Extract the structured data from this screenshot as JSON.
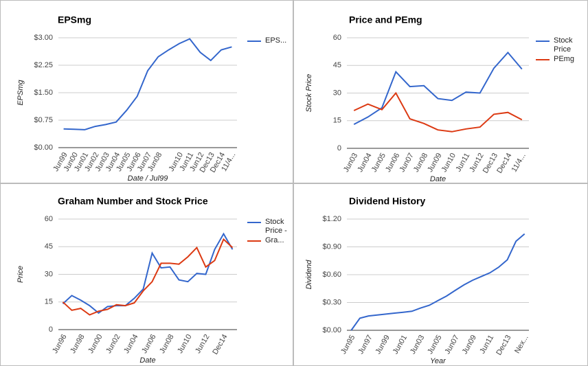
{
  "chart_data": [
    {
      "type": "line",
      "title": "EPSmg",
      "xlabel": "Date / Jul99",
      "ylabel": "EPSmg",
      "categories": [
        "Jun99",
        "Jun00",
        "Jun01",
        "Jun02",
        "Jun03",
        "Jun04",
        "Jun05",
        "Jun06",
        "Jun07",
        "Jun08",
        null,
        "Jun10",
        "Jun11",
        "Jun12",
        "Dec13",
        "Dec14",
        "11/4..."
      ],
      "series": [
        {
          "name": "EPS...",
          "color": "#3366cc",
          "values": [
            0.51,
            0.5,
            0.49,
            0.58,
            0.63,
            0.7,
            1.02,
            1.4,
            2.1,
            2.48,
            2.67,
            2.84,
            2.97,
            2.6,
            2.38,
            2.67,
            2.75
          ]
        }
      ],
      "ylim": [
        0,
        3
      ],
      "yticks": [
        {
          "value": 0,
          "label": "$0.00"
        },
        {
          "value": 0.75,
          "label": "$0.75"
        },
        {
          "value": 1.5,
          "label": "$1.50"
        },
        {
          "value": 2.25,
          "label": "$2.25"
        },
        {
          "value": 3,
          "label": "$3.00"
        }
      ],
      "grid": true,
      "legend": "right"
    },
    {
      "type": "line",
      "title": "Price and PEmg",
      "xlabel": "Date",
      "ylabel": "Stock Price",
      "categories": [
        "Jun03",
        "Jun04",
        "Jun05",
        "Jun06",
        "Jun07",
        "Jun08",
        "Jun09",
        "Jun10",
        "Jun11",
        "Jun12",
        "Dec13",
        "Dec14",
        "11/4..."
      ],
      "series": [
        {
          "name": "Stock Price",
          "color": "#3366cc",
          "values": [
            13,
            17,
            22,
            41.5,
            33.5,
            34,
            27,
            26,
            30.5,
            30,
            43.5,
            52,
            43
          ]
        },
        {
          "name": "PEmg",
          "color": "#dc3912",
          "values": [
            20.5,
            24,
            21,
            30,
            16,
            13.5,
            10,
            9,
            10.5,
            11.5,
            18.5,
            19.5,
            15.5
          ]
        }
      ],
      "ylim": [
        0,
        60
      ],
      "yticks": [
        0,
        15,
        30,
        45,
        60
      ],
      "grid": true,
      "legend": "right"
    },
    {
      "type": "line",
      "title": "Graham Number and Stock Price",
      "xlabel": "Date",
      "ylabel": "Price",
      "categories": [
        "Jun96",
        null,
        "Jun98",
        null,
        "Jun00",
        null,
        "Jun02",
        null,
        "Jun04",
        null,
        "Jun06",
        null,
        "Jun08",
        null,
        "Jun10",
        null,
        "Jun12",
        null,
        "Dec14",
        null
      ],
      "series": [
        {
          "name": "Stock Price -",
          "color": "#3366cc",
          "values": [
            14,
            18.5,
            16,
            13,
            9,
            12.5,
            13,
            13,
            17,
            22,
            41.5,
            33.5,
            34,
            27,
            26,
            30.5,
            30,
            43.5,
            52,
            43.5
          ]
        },
        {
          "name": "Gra...",
          "color": "#dc3912",
          "values": [
            15,
            10.5,
            11.5,
            8,
            10,
            11,
            13.5,
            13,
            14.5,
            21,
            26,
            36,
            36,
            35.5,
            39.5,
            44.5,
            34,
            37.5,
            49,
            44.5
          ]
        }
      ],
      "ylim": [
        0,
        60
      ],
      "yticks": [
        0,
        15,
        30,
        45,
        60
      ],
      "grid": true,
      "legend": "right"
    },
    {
      "type": "line",
      "title": "Dividend History",
      "xlabel": "Year",
      "ylabel": "Dividend",
      "categories": [
        "Jun95",
        null,
        "Jun97",
        null,
        "Jun99",
        null,
        "Jun01",
        null,
        "Jun03",
        null,
        "Jun05",
        null,
        "Jun07",
        null,
        "Jun09",
        null,
        "Jun11",
        null,
        "Dec13",
        null,
        "Nex..."
      ],
      "series": [
        {
          "color": "#3366cc",
          "values": [
            0,
            0.13,
            0.155,
            0.165,
            0.175,
            0.185,
            0.195,
            0.205,
            0.24,
            0.27,
            0.32,
            0.37,
            0.43,
            0.49,
            0.54,
            0.58,
            0.62,
            0.68,
            0.76,
            0.96,
            1.04
          ]
        }
      ],
      "ylim": [
        0,
        1.2
      ],
      "yticks": [
        {
          "value": 0,
          "label": "$0.00"
        },
        {
          "value": 0.3,
          "label": "$0.30"
        },
        {
          "value": 0.6,
          "label": "$0.60"
        },
        {
          "value": 0.9,
          "label": "$0.90"
        },
        {
          "value": 1.2,
          "label": "$1.20"
        }
      ],
      "grid": true
    }
  ]
}
